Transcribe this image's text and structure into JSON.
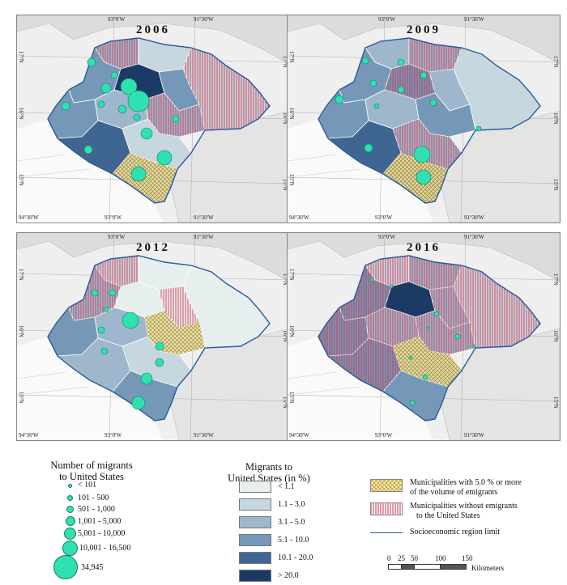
{
  "maps": [
    {
      "year": "2006",
      "top_ticks": [
        "93°0'W",
        "91°30'W"
      ],
      "bottom_ticks": [
        "94°30'W",
        "93°0'W",
        "91°30'W"
      ],
      "left_ticks": [
        "17°N",
        "16°N",
        "15°N"
      ],
      "right_ticks": [
        "17°N",
        "16°N",
        "15°N"
      ]
    },
    {
      "year": "2009",
      "top_ticks": [
        "93°0'W",
        "91°30'W"
      ],
      "bottom_ticks": [
        "94°30'W",
        "93°0'W",
        "91°30'W"
      ],
      "left_ticks": [
        "17°N",
        "16°N",
        "15°N"
      ],
      "right_ticks": [
        "17°N",
        "16°N",
        "15°N"
      ]
    },
    {
      "year": "2012",
      "top_ticks": [
        "93°0'W",
        "91°30'W"
      ],
      "bottom_ticks": [
        "94°30'W",
        "93°0'W",
        "91°30'W"
      ],
      "left_ticks": [
        "17°N",
        "16°N",
        "15°N"
      ],
      "right_ticks": [
        "17°N",
        "16°N",
        "15°N"
      ]
    },
    {
      "year": "2016",
      "top_ticks": [
        "93°0'W",
        "91°30'W"
      ],
      "bottom_ticks": [
        "94°30'W",
        "93°0'W",
        "91°30'W"
      ],
      "left_ticks": [
        "17°N",
        "16°N",
        "15°N"
      ],
      "right_ticks": [
        "17°N",
        "16°N",
        "15°N"
      ]
    }
  ],
  "legend_migrants": {
    "title_line1": "Number of migrants",
    "title_line2": "to United States",
    "items": [
      "< 101",
      "101 - 500",
      "501 - 1,000",
      "1,001 - 5,000",
      "5,001 - 10,000",
      "10,001 - 16,500",
      "34,945"
    ]
  },
  "legend_percent": {
    "title_line1": "Migrants to",
    "title_line2": "United States (in %)",
    "items": [
      {
        "label": "< 1.1",
        "color": "#e6efee"
      },
      {
        "label": "1.1 - 3.0",
        "color": "#c7d7df"
      },
      {
        "label": "3.1 - 5.0",
        "color": "#9fb7cc"
      },
      {
        "label": "5.1 - 10.0",
        "color": "#7598b8"
      },
      {
        "label": "10.1 - 20.0",
        "color": "#3f6690"
      },
      {
        "label": "> 20.0",
        "color": "#1c3a66"
      }
    ]
  },
  "legend_other": {
    "emigrants5_line1": "Municipalities with 5.0 % or more",
    "emigrants5_line2": "of the volume of emigrants",
    "without_line1": "Municipalities without emigrants",
    "without_line2": "to the United States",
    "region_limit": "Socioeconomic region limit"
  },
  "scale_bar": {
    "ticks": [
      "0",
      "25",
      "50",
      "100",
      "150"
    ],
    "unit": "Kilometers"
  }
}
